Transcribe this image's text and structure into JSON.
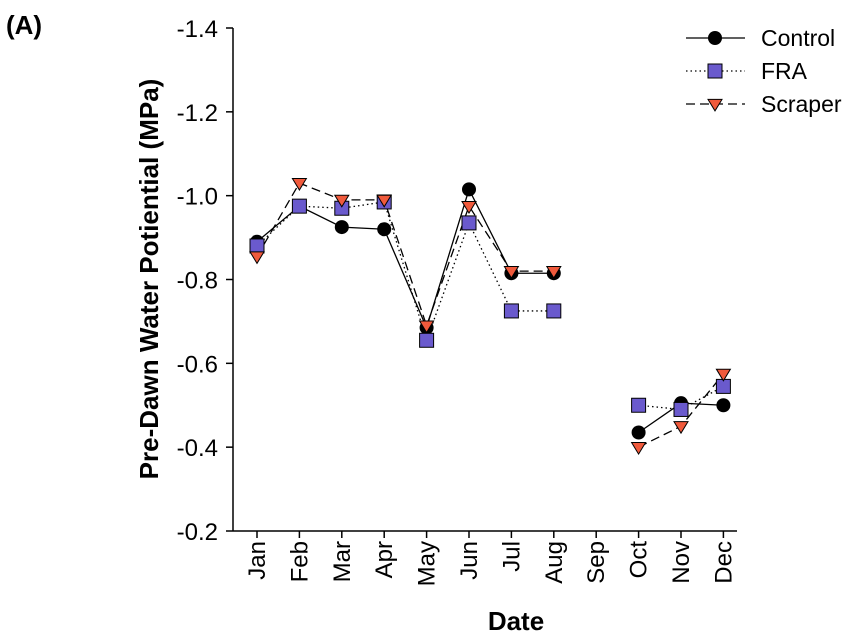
{
  "panel_label": "(A)",
  "chart_data": {
    "type": "line",
    "xlabel": "Date",
    "ylabel": "Pre-Dawn Water Potiential (MPa)",
    "ylim": [
      -0.2,
      -1.4
    ],
    "y_ticks": [
      "-0.2",
      "-0.4",
      "-0.6",
      "-0.8",
      "-1.0",
      "-1.2",
      "-1.4"
    ],
    "categories": [
      "Jan",
      "Feb",
      "Mar",
      "Apr",
      "May",
      "Jun",
      "Jul",
      "Aug",
      "Sep",
      "Oct",
      "Nov",
      "Dec"
    ],
    "grid": false,
    "legend_position": "top-right",
    "series": [
      {
        "name": "Control",
        "marker": "circle",
        "line_style": "solid",
        "color": "#000000",
        "values": [
          -0.89,
          -0.975,
          -0.925,
          -0.92,
          -0.685,
          -1.015,
          -0.815,
          -0.815,
          null,
          -0.435,
          -0.505,
          -0.5
        ]
      },
      {
        "name": "FRA",
        "marker": "square",
        "line_style": "dotted",
        "color": "#6a5acd",
        "values": [
          -0.88,
          -0.975,
          -0.97,
          -0.985,
          -0.655,
          -0.935,
          -0.725,
          -0.725,
          null,
          -0.5,
          -0.49,
          -0.545
        ]
      },
      {
        "name": "Scraper",
        "marker": "triangle-down",
        "line_style": "dashed",
        "color": "#f05a3c",
        "values": [
          -0.855,
          -1.03,
          -0.99,
          -0.99,
          -0.69,
          -0.975,
          -0.82,
          -0.82,
          null,
          -0.4,
          -0.45,
          -0.575
        ]
      }
    ]
  }
}
